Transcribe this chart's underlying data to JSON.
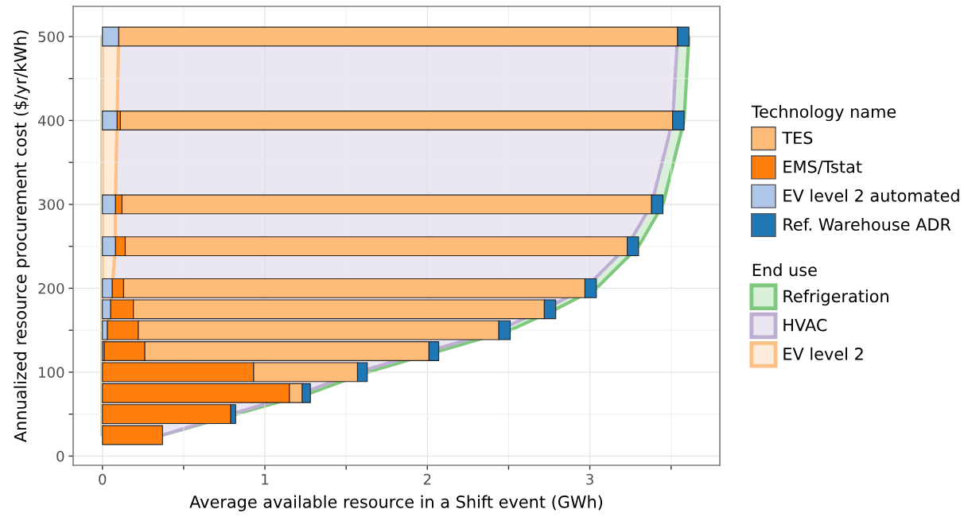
{
  "chart_data": {
    "type": "bar",
    "orientation": "horizontal",
    "xlabel": "Average available resource in a Shift event (GWh)",
    "ylabel": "Annualized resource procurement cost ($/yr/kWh)",
    "legend_title": [
      "Technology name",
      "End use"
    ],
    "x": [
      25,
      50,
      75,
      100,
      125,
      150,
      175,
      200,
      250,
      300,
      400,
      500
    ],
    "series": [
      {
        "name": "TES",
        "color": "#ffbb78",
        "values": [
          null,
          null,
          0.08,
          0.64,
          1.75,
          2.22,
          2.53,
          2.84,
          3.09,
          3.26,
          3.4,
          3.44
        ],
        "base": [
          null,
          null,
          1.15,
          0.93,
          0.26,
          0.22,
          0.19,
          0.13,
          0.14,
          0.12,
          0.11,
          0.1
        ]
      },
      {
        "name": "EMS/Tstat",
        "color": "#ff7f0e",
        "values": [
          0.37,
          0.79,
          1.15,
          0.93,
          0.25,
          0.19,
          0.14,
          0.07,
          0.06,
          0.04,
          0.02,
          null
        ],
        "base": [
          0,
          0,
          0,
          0,
          0.01,
          0.03,
          0.05,
          0.06,
          0.08,
          0.08,
          0.09,
          null
        ]
      },
      {
        "name": "EV level 2 automated",
        "color": "#aec7e8",
        "values": [
          null,
          null,
          null,
          null,
          0.01,
          0.03,
          0.05,
          0.06,
          0.08,
          0.08,
          0.09,
          0.1
        ],
        "base": [
          null,
          null,
          null,
          null,
          0,
          0,
          0,
          0,
          0,
          0,
          0,
          0
        ]
      },
      {
        "name": "Ref. Warehouse ADR",
        "color": "#1f77b4",
        "values": [
          null,
          0.03,
          0.05,
          0.06,
          0.06,
          0.07,
          0.07,
          0.07,
          0.07,
          0.07,
          0.07,
          0.07
        ],
        "base": [
          null,
          0.79,
          1.23,
          1.57,
          2.01,
          2.44,
          2.72,
          2.97,
          3.23,
          3.38,
          3.51,
          3.54
        ]
      },
      {
        "name": "Refrigeration",
        "type": "area",
        "color": "#7fc97f",
        "values": [
          0.37,
          0.82,
          1.28,
          1.63,
          2.07,
          2.51,
          2.79,
          3.04,
          3.3,
          3.45,
          3.58,
          3.61
        ]
      },
      {
        "name": "HVAC",
        "type": "area",
        "color": "#beaed4",
        "values": [
          0.37,
          0.79,
          1.23,
          1.57,
          2.01,
          2.44,
          2.72,
          2.97,
          3.23,
          3.38,
          3.51,
          3.54
        ]
      },
      {
        "name": "EV level 2",
        "type": "area",
        "color": "#fdc086",
        "values": [
          0,
          0,
          0,
          0,
          0.01,
          0.03,
          0.05,
          0.06,
          0.08,
          0.08,
          0.09,
          0.1
        ]
      }
    ],
    "xlim": [
      -0.18,
      3.8
    ],
    "xticks": [
      0,
      {
        "value": 0.5,
        "label": null
      },
      1,
      {
        "value": 1.5,
        "label": null
      },
      2,
      {
        "value": 2.5,
        "label": null
      },
      3,
      {
        "value": 3.5,
        "label": null
      }
    ],
    "ylim": [
      -11,
      536
    ],
    "yticks": [
      0,
      {
        "value": 50,
        "label": null
      },
      100,
      {
        "value": 150,
        "label": null
      },
      200,
      {
        "value": 250,
        "label": null
      },
      300,
      {
        "value": 350,
        "label": null
      },
      400,
      {
        "value": 450,
        "label": null
      },
      500
    ],
    "grid": true,
    "legend": "right"
  }
}
